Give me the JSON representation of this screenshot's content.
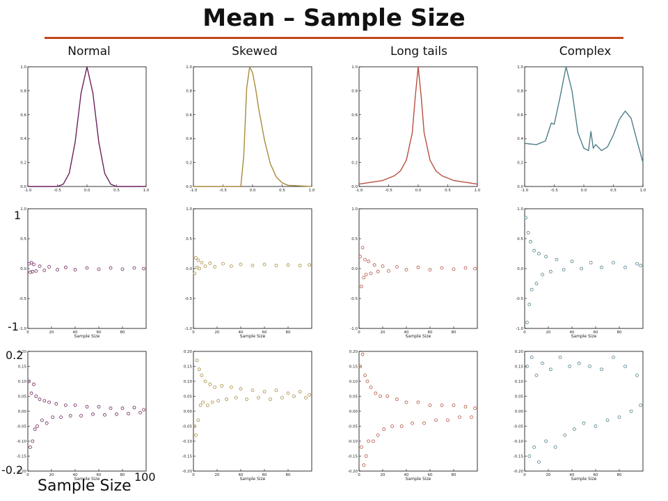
{
  "slide": {
    "title": "Mean – Sample Size",
    "axis_notes": {
      "row2_top": "1",
      "row2_bottom": "-1",
      "row3_top": "0.2",
      "row3_bottom": "-0.2",
      "x_label": "Sample Size",
      "x_max": "100"
    },
    "colors": {
      "title_rule": "#c0451a"
    }
  },
  "columns": [
    {
      "label": "Normal",
      "color": "#6b1f5a"
    },
    {
      "label": "Skewed",
      "color": "#a88a3c"
    },
    {
      "label": "Long tails",
      "color": "#b5503f"
    },
    {
      "label": "Complex",
      "color": "#4d7d88"
    }
  ],
  "chart_data": [
    {
      "type": "line",
      "row": "density",
      "column": "Normal",
      "xlim": [
        -1.0,
        1.0
      ],
      "ylim": [
        0.0,
        1.0
      ],
      "x_ticks": [
        "-1.0",
        "-0.5",
        "0.0",
        "0.5",
        "1.0"
      ],
      "y_ticks": [
        "0.0",
        "0.2",
        "0.4",
        "0.6",
        "0.8",
        "1.0"
      ],
      "x": [
        -1.0,
        -0.5,
        -0.4,
        -0.3,
        -0.2,
        -0.1,
        0.0,
        0.1,
        0.2,
        0.3,
        0.4,
        0.5,
        1.0
      ],
      "y": [
        0.0,
        0.0,
        0.02,
        0.11,
        0.37,
        0.78,
        1.0,
        0.78,
        0.37,
        0.11,
        0.02,
        0.0,
        0.0
      ]
    },
    {
      "type": "line",
      "row": "density",
      "column": "Skewed",
      "xlim": [
        -1.0,
        1.0
      ],
      "ylim": [
        0.0,
        1.0
      ],
      "x_ticks": [
        "-1.0",
        "-0.5",
        "0.0",
        "0.5",
        "1.0"
      ],
      "y_ticks": [
        "0.0",
        "0.2",
        "0.4",
        "0.6",
        "0.8",
        "1.0"
      ],
      "x": [
        -1.0,
        -0.2,
        -0.15,
        -0.1,
        -0.05,
        0.0,
        0.05,
        0.1,
        0.2,
        0.3,
        0.4,
        0.5,
        0.6,
        1.0
      ],
      "y": [
        0.0,
        0.0,
        0.25,
        0.82,
        1.0,
        0.95,
        0.82,
        0.66,
        0.39,
        0.19,
        0.08,
        0.03,
        0.01,
        0.0
      ]
    },
    {
      "type": "line",
      "row": "density",
      "column": "Long tails",
      "xlim": [
        -1.0,
        1.0
      ],
      "ylim": [
        0.0,
        1.0
      ],
      "x_ticks": [
        "-1.0",
        "-0.5",
        "0.0",
        "0.5",
        "1.0"
      ],
      "y_ticks": [
        "0.0",
        "0.2",
        "0.4",
        "0.6",
        "0.8",
        "1.0"
      ],
      "x": [
        -1.0,
        -0.6,
        -0.4,
        -0.3,
        -0.2,
        -0.1,
        -0.05,
        0.0,
        0.05,
        0.1,
        0.2,
        0.3,
        0.4,
        0.6,
        1.0
      ],
      "y": [
        0.02,
        0.05,
        0.09,
        0.13,
        0.22,
        0.45,
        0.75,
        1.0,
        0.75,
        0.45,
        0.22,
        0.13,
        0.09,
        0.05,
        0.02
      ]
    },
    {
      "type": "line",
      "row": "density",
      "column": "Complex",
      "xlim": [
        -1.0,
        1.0
      ],
      "ylim": [
        0.0,
        1.0
      ],
      "x_ticks": [
        "-1.0",
        "-0.5",
        "0.0",
        "0.5",
        "1.0"
      ],
      "y_ticks": [
        "0.0",
        "0.2",
        "0.4",
        "0.6",
        "0.8",
        "1.0"
      ],
      "x": [
        -1.0,
        -0.8,
        -0.65,
        -0.55,
        -0.5,
        -0.4,
        -0.3,
        -0.2,
        -0.1,
        0.0,
        0.08,
        0.12,
        0.16,
        0.2,
        0.3,
        0.4,
        0.5,
        0.6,
        0.7,
        0.8,
        0.9,
        1.0
      ],
      "y": [
        0.36,
        0.35,
        0.38,
        0.53,
        0.52,
        0.75,
        1.0,
        0.8,
        0.45,
        0.32,
        0.3,
        0.46,
        0.32,
        0.35,
        0.3,
        0.33,
        0.43,
        0.56,
        0.63,
        0.57,
        0.38,
        0.2
      ]
    },
    {
      "type": "scatter",
      "row": "mean",
      "column": "Normal",
      "xlim": [
        0,
        100
      ],
      "ylim": [
        -1.0,
        1.0
      ],
      "xlabel": "Sample Size",
      "x_ticks": [
        "0",
        "20",
        "40",
        "60",
        "80"
      ],
      "y_ticks": [
        "-1.0",
        "-0.5",
        "0.0",
        "0.5",
        "1.0"
      ],
      "x": [
        1,
        2,
        3,
        4,
        5,
        7,
        10,
        14,
        18,
        25,
        32,
        40,
        50,
        60,
        70,
        80,
        90,
        98
      ],
      "y": [
        0.08,
        -0.06,
        0.1,
        -0.05,
        0.07,
        -0.04,
        0.04,
        -0.03,
        0.03,
        -0.02,
        0.02,
        -0.02,
        0.01,
        -0.01,
        0.01,
        -0.01,
        0.01,
        0.0
      ]
    },
    {
      "type": "scatter",
      "row": "mean",
      "column": "Skewed",
      "xlim": [
        0,
        100
      ],
      "ylim": [
        -1.0,
        1.0
      ],
      "xlabel": "Sample Size",
      "x_ticks": [
        "0",
        "20",
        "40",
        "60",
        "80"
      ],
      "y_ticks": [
        "-1.0",
        "-0.5",
        "0.0",
        "0.5",
        "1.0"
      ],
      "x": [
        1,
        2,
        3,
        4,
        5,
        7,
        10,
        14,
        18,
        25,
        32,
        40,
        50,
        60,
        70,
        80,
        90,
        98
      ],
      "y": [
        -0.08,
        0.18,
        0.02,
        0.14,
        0.0,
        0.1,
        0.04,
        0.09,
        0.03,
        0.08,
        0.04,
        0.07,
        0.05,
        0.07,
        0.05,
        0.06,
        0.05,
        0.06
      ]
    },
    {
      "type": "scatter",
      "row": "mean",
      "column": "Long tails",
      "xlim": [
        0,
        100
      ],
      "ylim": [
        -1.0,
        1.0
      ],
      "xlabel": "Sample Size",
      "x_ticks": [
        "0",
        "20",
        "40",
        "60",
        "80"
      ],
      "y_ticks": [
        "-1.0",
        "-0.5",
        "0.0",
        "0.5",
        "1.0"
      ],
      "x": [
        1,
        2,
        3,
        4,
        5,
        6,
        8,
        10,
        13,
        16,
        20,
        25,
        32,
        40,
        50,
        60,
        70,
        80,
        90,
        98
      ],
      "y": [
        0.2,
        -0.3,
        0.35,
        -0.15,
        0.15,
        -0.1,
        0.12,
        -0.08,
        0.06,
        -0.05,
        0.04,
        -0.04,
        0.03,
        -0.02,
        0.02,
        -0.02,
        0.01,
        -0.01,
        0.01,
        0.0
      ]
    },
    {
      "type": "scatter",
      "row": "mean",
      "column": "Complex",
      "xlim": [
        0,
        100
      ],
      "ylim": [
        -1.0,
        1.0
      ],
      "xlabel": "Sample Size",
      "x_ticks": [
        "0",
        "20",
        "40",
        "60",
        "80"
      ],
      "y_ticks": [
        "-1.0",
        "-0.5",
        "0.0",
        "0.5",
        "1.0"
      ],
      "x": [
        1,
        2,
        3,
        4,
        5,
        6,
        8,
        10,
        12,
        15,
        18,
        22,
        27,
        33,
        40,
        48,
        56,
        65,
        75,
        85,
        95,
        98
      ],
      "y": [
        0.85,
        -0.9,
        0.6,
        -0.6,
        0.45,
        -0.35,
        0.3,
        -0.25,
        0.25,
        -0.1,
        0.2,
        -0.05,
        0.15,
        -0.02,
        0.12,
        0.0,
        0.1,
        0.02,
        0.1,
        0.02,
        0.08,
        0.05
      ]
    },
    {
      "type": "scatter",
      "row": "mean-zoom",
      "column": "Normal",
      "xlim": [
        0,
        100
      ],
      "ylim": [
        -0.2,
        0.2
      ],
      "xlabel": "Sample Size",
      "x_ticks": [
        "0",
        "20",
        "40",
        "60",
        "80"
      ],
      "y_ticks": [
        "-0.20",
        "-0.15",
        "-0.10",
        "-0.05",
        "0.00",
        "0.05",
        "0.10",
        "0.15",
        "0.20"
      ],
      "x": [
        1,
        2,
        3,
        4,
        5,
        6,
        7,
        8,
        10,
        12,
        14,
        16,
        18,
        21,
        24,
        28,
        32,
        36,
        40,
        45,
        50,
        55,
        60,
        65,
        70,
        75,
        80,
        85,
        90,
        95,
        98
      ],
      "y": [
        0.1,
        -0.12,
        0.06,
        -0.1,
        0.09,
        -0.06,
        0.05,
        -0.05,
        0.04,
        -0.03,
        0.035,
        -0.04,
        0.03,
        -0.02,
        0.025,
        -0.02,
        0.02,
        -0.015,
        0.02,
        -0.015,
        0.015,
        -0.01,
        0.015,
        -0.012,
        0.01,
        -0.01,
        0.01,
        -0.008,
        0.012,
        -0.005,
        0.005
      ]
    },
    {
      "type": "scatter",
      "row": "mean-zoom",
      "column": "Skewed",
      "xlim": [
        0,
        100
      ],
      "ylim": [
        -0.2,
        0.2
      ],
      "xlabel": "Sample Size",
      "x_ticks": [
        "0",
        "20",
        "40",
        "60",
        "80"
      ],
      "y_ticks": [
        "-0.20",
        "-0.15",
        "-0.10",
        "-0.05",
        "0.00",
        "0.05",
        "0.10",
        "0.15",
        "0.20"
      ],
      "x": [
        1,
        2,
        3,
        4,
        5,
        6,
        7,
        8,
        10,
        12,
        14,
        16,
        18,
        21,
        24,
        28,
        32,
        36,
        40,
        45,
        50,
        55,
        60,
        65,
        70,
        75,
        80,
        85,
        90,
        95,
        98
      ],
      "y": [
        -0.05,
        -0.08,
        0.17,
        -0.03,
        0.14,
        0.02,
        0.12,
        0.03,
        0.1,
        0.02,
        0.09,
        0.03,
        0.08,
        0.035,
        0.085,
        0.04,
        0.08,
        0.045,
        0.075,
        0.04,
        0.07,
        0.045,
        0.065,
        0.04,
        0.07,
        0.045,
        0.06,
        0.05,
        0.065,
        0.045,
        0.055
      ]
    },
    {
      "type": "scatter",
      "row": "mean-zoom",
      "column": "Long tails",
      "xlim": [
        0,
        100
      ],
      "ylim": [
        -0.2,
        0.2
      ],
      "xlabel": "Sample Size",
      "x_ticks": [
        "0",
        "20",
        "40",
        "60",
        "80"
      ],
      "y_ticks": [
        "-0.20",
        "-0.15",
        "-0.10",
        "-0.05",
        "0.00",
        "0.05",
        "0.10",
        "0.15",
        "0.20"
      ],
      "x": [
        1,
        2,
        3,
        4,
        5,
        6,
        7,
        8,
        10,
        12,
        14,
        16,
        18,
        21,
        24,
        28,
        32,
        36,
        40,
        45,
        50,
        55,
        60,
        65,
        70,
        75,
        80,
        85,
        90,
        95,
        98
      ],
      "y": [
        0.15,
        -0.12,
        0.19,
        -0.18,
        0.12,
        -0.15,
        0.1,
        -0.1,
        0.08,
        -0.1,
        0.06,
        -0.08,
        0.05,
        -0.06,
        0.05,
        -0.05,
        0.04,
        -0.05,
        0.03,
        -0.04,
        0.03,
        -0.04,
        0.02,
        -0.03,
        0.02,
        -0.03,
        0.02,
        -0.02,
        0.015,
        -0.02,
        0.01
      ]
    },
    {
      "type": "scatter",
      "row": "mean-zoom",
      "column": "Complex",
      "xlim": [
        0,
        100
      ],
      "ylim": [
        -0.2,
        0.2
      ],
      "xlabel": "Sample Size",
      "x_ticks": [
        "0",
        "20",
        "40",
        "60",
        "80"
      ],
      "y_ticks": [
        "-0.20",
        "-0.15",
        "-0.10",
        "-0.05",
        "0.00",
        "0.05",
        "0.10",
        "0.15",
        "0.20"
      ],
      "x": [
        2,
        4,
        6,
        8,
        10,
        12,
        15,
        18,
        22,
        26,
        30,
        34,
        38,
        42,
        46,
        50,
        55,
        60,
        65,
        70,
        75,
        80,
        85,
        90,
        95,
        98
      ],
      "y": [
        0.15,
        -0.15,
        0.18,
        -0.12,
        0.12,
        -0.17,
        0.16,
        -0.1,
        0.14,
        -0.12,
        0.18,
        -0.08,
        0.15,
        -0.06,
        0.16,
        -0.04,
        0.15,
        -0.05,
        0.14,
        -0.03,
        0.18,
        -0.02,
        0.15,
        0.0,
        0.12,
        0.02
      ]
    }
  ]
}
